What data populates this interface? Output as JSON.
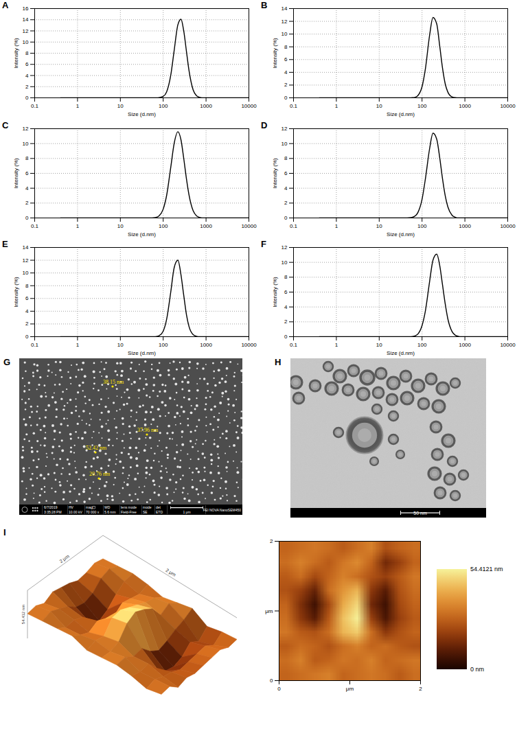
{
  "chart_data": [
    {
      "type": "line",
      "title": "A",
      "xlabel": "Size (d.nm)",
      "ylabel": "Intensity (%)",
      "color": "#000000",
      "log": "x",
      "grid": true,
      "x": [
        0.4,
        40,
        50,
        60,
        70,
        80,
        100,
        120,
        150,
        180,
        220,
        260,
        300,
        350,
        400,
        500,
        600,
        700,
        800,
        1000,
        10000
      ],
      "values": [
        0,
        0,
        0,
        0,
        0,
        0.03,
        0.25,
        1.05,
        4.04,
        8.44,
        13.1,
        14.1,
        12.1,
        8.24,
        4.9,
        1.41,
        0.36,
        0.09,
        0,
        0,
        0
      ],
      "xlim": [
        0.1,
        10000
      ],
      "xticks": [
        0.1,
        1,
        10,
        100,
        1000,
        10000
      ],
      "ylim": [
        0,
        16
      ],
      "yticks": [
        0,
        2,
        4,
        6,
        8,
        10,
        12,
        14,
        16
      ]
    },
    {
      "type": "line",
      "title": "B",
      "xlabel": "Size (d.nm)",
      "ylabel": "Intensity (%)",
      "color": "#000000",
      "log": "x",
      "grid": true,
      "x": [
        0.4,
        40,
        50,
        60,
        70,
        80,
        100,
        120,
        150,
        180,
        220,
        260,
        300,
        350,
        400,
        500,
        600,
        700,
        800,
        1000,
        10000
      ],
      "values": [
        0,
        0,
        0,
        0.02,
        0.1,
        0.35,
        1.75,
        4.6,
        9.8,
        12.6,
        11.6,
        8.0,
        4.7,
        2.1,
        0.9,
        0.14,
        0.02,
        0,
        0,
        0,
        0
      ],
      "xlim": [
        0.1,
        10000
      ],
      "xticks": [
        0.1,
        1,
        10,
        100,
        1000,
        10000
      ],
      "ylim": [
        0,
        14
      ],
      "yticks": [
        0,
        2,
        4,
        6,
        8,
        10,
        12,
        14
      ]
    },
    {
      "type": "line",
      "title": "C",
      "xlabel": "Size (d.nm)",
      "ylabel": "Intensity (%)",
      "color": "#000000",
      "log": "x",
      "grid": true,
      "x": [
        0.4,
        40,
        50,
        60,
        70,
        80,
        100,
        120,
        150,
        180,
        220,
        260,
        300,
        350,
        400,
        500,
        600,
        700,
        800,
        1000,
        10000
      ],
      "values": [
        0,
        0,
        0,
        0.02,
        0.09,
        0.27,
        1.19,
        3.0,
        6.8,
        10.0,
        11.6,
        10.5,
        8.1,
        5.2,
        3.1,
        0.96,
        0.28,
        0.08,
        0,
        0,
        0
      ],
      "xlim": [
        0.1,
        10000
      ],
      "xticks": [
        0.1,
        1,
        10,
        100,
        1000,
        10000
      ],
      "ylim": [
        0,
        12
      ],
      "yticks": [
        0,
        2,
        4,
        6,
        8,
        10,
        12
      ]
    },
    {
      "type": "line",
      "title": "D",
      "xlabel": "Size (d.nm)",
      "ylabel": "Intensity (%)",
      "color": "#000000",
      "log": "x",
      "grid": true,
      "x": [
        0.4,
        40,
        50,
        60,
        70,
        80,
        100,
        120,
        150,
        180,
        220,
        260,
        300,
        350,
        400,
        500,
        600,
        700,
        800,
        1000,
        10000
      ],
      "values": [
        0,
        0,
        0.02,
        0.09,
        0.29,
        0.73,
        2.5,
        5.3,
        9.3,
        11.4,
        10.6,
        8.0,
        5.3,
        2.9,
        1.5,
        0.37,
        0.09,
        0,
        0,
        0,
        0
      ],
      "xlim": [
        0.1,
        10000
      ],
      "xticks": [
        0.1,
        1,
        10,
        100,
        1000,
        10000
      ],
      "ylim": [
        0,
        12
      ],
      "yticks": [
        0,
        2,
        4,
        6,
        8,
        10,
        12
      ]
    },
    {
      "type": "line",
      "title": "E",
      "xlabel": "Size (d.nm)",
      "ylabel": "Intensity (%)",
      "color": "#000000",
      "log": "x",
      "grid": true,
      "x": [
        0.4,
        40,
        50,
        60,
        70,
        80,
        100,
        120,
        150,
        180,
        220,
        260,
        300,
        350,
        400,
        500,
        600,
        700,
        800,
        1000,
        10000
      ],
      "values": [
        0,
        0,
        0,
        0,
        0.04,
        0.14,
        0.86,
        2.7,
        7.0,
        10.8,
        12.0,
        9.7,
        6.6,
        3.4,
        1.6,
        0.32,
        0.06,
        0,
        0,
        0,
        0
      ],
      "xlim": [
        0.1,
        10000
      ],
      "xticks": [
        0.1,
        1,
        10,
        100,
        1000,
        10000
      ],
      "ylim": [
        0,
        14
      ],
      "yticks": [
        0,
        2,
        4,
        6,
        8,
        10,
        12,
        14
      ]
    },
    {
      "type": "line",
      "title": "F",
      "xlabel": "Size (d.nm)",
      "ylabel": "Intensity (%)",
      "color": "#000000",
      "log": "x",
      "grid": true,
      "x": [
        0.4,
        40,
        50,
        60,
        70,
        80,
        100,
        120,
        150,
        180,
        220,
        260,
        300,
        350,
        400,
        500,
        600,
        700,
        800,
        1000,
        10000
      ],
      "values": [
        0,
        0,
        0,
        0.03,
        0.13,
        0.36,
        1.5,
        3.5,
        7.4,
        10.3,
        11.1,
        9.5,
        7.0,
        4.3,
        2.4,
        0.7,
        0.19,
        0.05,
        0,
        0,
        0
      ],
      "xlim": [
        0.1,
        10000
      ],
      "xticks": [
        0.1,
        1,
        10,
        100,
        1000,
        10000
      ],
      "ylim": [
        0,
        12
      ],
      "yticks": [
        0,
        2,
        4,
        6,
        8,
        10,
        12
      ]
    },
    {
      "type": "heatmap",
      "title": "I",
      "cells": [
        [
          28,
          30,
          32,
          30,
          26,
          30,
          34,
          24,
          28,
          30
        ],
        [
          30,
          34,
          30,
          26,
          32,
          36,
          28,
          14,
          20,
          28
        ],
        [
          26,
          30,
          22,
          28,
          34,
          30,
          24,
          20,
          26,
          32
        ],
        [
          24,
          20,
          12,
          30,
          38,
          44,
          18,
          10,
          24,
          30
        ],
        [
          28,
          16,
          6,
          22,
          42,
          50,
          14,
          6,
          22,
          28
        ],
        [
          30,
          18,
          10,
          26,
          46,
          54,
          20,
          8,
          20,
          26
        ],
        [
          32,
          26,
          24,
          30,
          44,
          48,
          30,
          18,
          24,
          28
        ],
        [
          26,
          30,
          28,
          24,
          30,
          34,
          28,
          30,
          26,
          24
        ],
        [
          30,
          34,
          26,
          28,
          32,
          30,
          34,
          28,
          30,
          32
        ],
        [
          28,
          30,
          32,
          34,
          28,
          30,
          32,
          30,
          26,
          30
        ]
      ],
      "xlim": [
        0,
        2
      ],
      "xticks": [
        0,
        {
          "value": 1,
          "label": "μm"
        },
        2
      ],
      "ylim": [
        0,
        2
      ],
      "yticks": [
        0,
        {
          "value": 1,
          "label": "μm"
        },
        2
      ],
      "colorbar_range": [
        0,
        54.4121
      ],
      "colorbar_ticks": [
        {
          "value": 54.4121,
          "label": "54.4121 nm"
        },
        {
          "value": 0,
          "label": "0 nm"
        }
      ],
      "surface_3d": {
        "axis_labels": [
          "2 μm",
          "2 μm",
          "54.412 nm"
        ]
      }
    }
  ],
  "figures": {
    "G": {
      "title": "G",
      "type": "sem_image",
      "annotations": [
        "38.15 nm",
        "37.96 nm",
        "52.42 nm",
        "20.76 nm"
      ],
      "info_bar": {
        "date": "6/7/2019",
        "time": "3:35:28 PM",
        "fields": [
          {
            "label": "HV",
            "value": "10.00 kV"
          },
          {
            "label": "mag",
            "value": "70 000 x"
          },
          {
            "label": "WD",
            "value": "5.6 mm"
          },
          {
            "label": "lens mode",
            "value": "Field-Free"
          },
          {
            "label": "mode",
            "value": "SE"
          },
          {
            "label": "det",
            "value": "ETD"
          }
        ],
        "scale_bar": "1 μm",
        "instrument": "FEI NOVA NanoSEM450"
      }
    },
    "H": {
      "title": "H",
      "type": "tem_image",
      "scale_bar": "50 nm"
    }
  }
}
